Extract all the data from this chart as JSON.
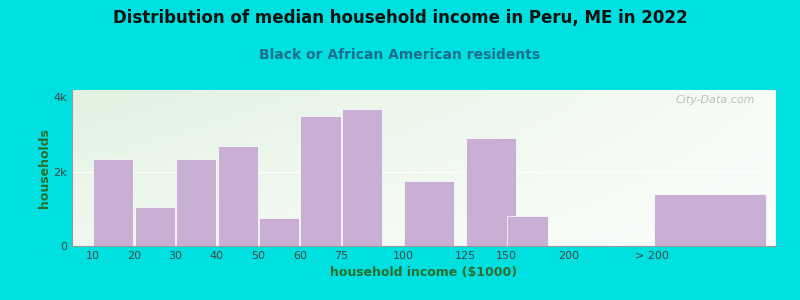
{
  "title": "Distribution of median household income in Peru, ME in 2022",
  "subtitle": "Black or African American residents",
  "xlabel": "household income ($1000)",
  "ylabel": "households",
  "bar_labels": [
    "10",
    "20",
    "30",
    "40",
    "50",
    "60",
    "75",
    "100",
    "125",
    "150",
    "200",
    "> 200"
  ],
  "bar_values": [
    2350,
    1050,
    2350,
    2700,
    750,
    3500,
    3700,
    1750,
    2900,
    800,
    0,
    1400
  ],
  "bar_color": "#c9afd4",
  "bar_edgecolor": "#ffffff",
  "fig_background": "#00e0e0",
  "ylim": [
    0,
    4200
  ],
  "ytick_vals": [
    0,
    2000,
    4000
  ],
  "ytick_labels": [
    "0",
    "2k",
    "4k"
  ],
  "title_fontsize": 12,
  "subtitle_fontsize": 10,
  "axis_label_fontsize": 9,
  "watermark_text": "City-Data.com"
}
